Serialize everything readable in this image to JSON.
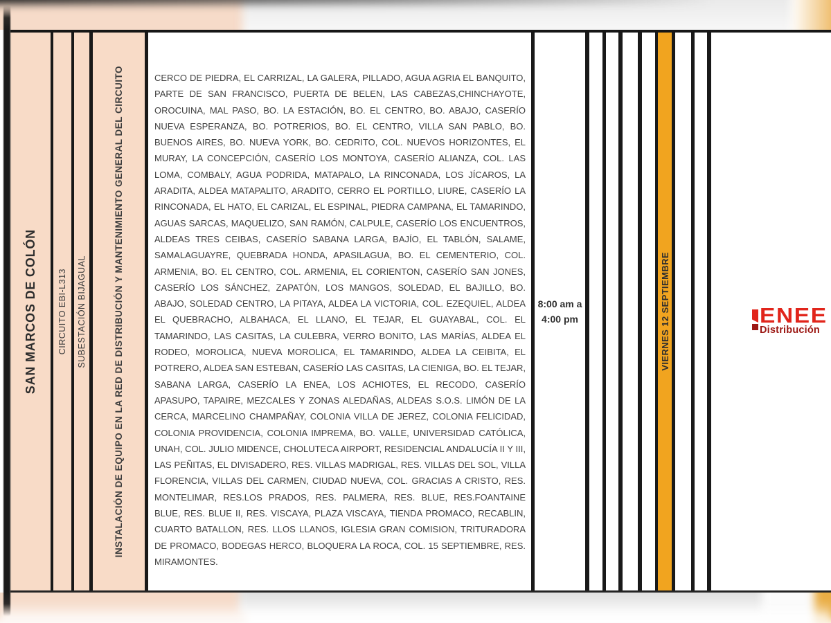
{
  "document": {
    "region": "SAN MARCOS DE COLÓN",
    "circuit": "CIRCUITO EBI-L313",
    "substation": "SUBESTACIÓN BIJAGUAL",
    "work_description": "INSTALACIÓN DE EQUIPO EN LA RED DE DISTRIBUCIÓN Y MANTENIMIENTO GENERAL DEL CIRCUITO",
    "affected_areas": "CERCO DE PIEDRA, EL CARRIZAL, LA GALERA, PILLADO, AGUA AGRIA EL BANQUITO, PARTE DE SAN FRANCISCO, PUERTA DE BELEN, LAS CABEZAS,CHINCHAYOTE, OROCUINA, MAL PASO, BO. LA ESTACIÓN, BO. EL CENTRO, BO. ABAJO, CASERÍO NUEVA ESPERANZA, BO. POTRERIOS, BO. EL CENTRO, VILLA SAN PABLO, BO. BUENOS AIRES, BO. NUEVA YORK, BO. CEDRITO, COL. NUEVOS HORIZONTES, EL MURAY, LA CONCEPCIÓN, CASERÍO LOS MONTOYA, CASERÍO ALIANZA, COL. LAS LOMA, COMBALY, AGUA PODRIDA, MATAPALO, LA RINCONADA, LOS JÍCAROS, LA ARADITA, ALDEA MATAPALITO, ARADITO, CERRO EL PORTILLO, LIURE, CASERÍO LA RINCONADA, EL HATO, EL CARIZAL, EL ESPINAL, PIEDRA CAMPANA, EL TAMARINDO, AGUAS SARCAS, MAQUELIZO, SAN RAMÓN, CALPULE, CASERÍO LOS ENCUENTROS, ALDEAS TRES CEIBAS, CASERÍO SABANA LARGA, BAJÍO, EL TABLÓN, SALAME, SAMALAGUAYRE, QUEBRADA HONDA, APASILAGUA, BO. EL CEMENTERIO, COL. ARMENIA, BO. EL CENTRO, COL. ARMENIA, EL CORIENTON, CASERÍO SAN JONES, CASERÍO LOS SÁNCHEZ, ZAPATÓN, LOS MANGOS, SOLEDAD, EL BAJILLO, BO. ABAJO, SOLEDAD CENTRO, LA PITAYA, ALDEA LA VICTORIA, COL. EZEQUIEL, ALDEA EL QUEBRACHO, ALBAHACA, EL LLANO, EL TEJAR, EL GUAYABAL, COL. EL TAMARINDO, LAS CASITAS, LA CULEBRA, VERRO BONITO, LAS MARÍAS, ALDEA EL RODEO, MOROLICA, NUEVA MOROLICA, EL TAMARINDO, ALDEA LA CEIBITA, EL POTRERO, ALDEA SAN ESTEBAN, CASERÍO LAS CASITAS, LA CIENIGA, BO. EL TEJAR, SABANA LARGA, CASERÍO LA ENEA, LOS ACHIOTES, EL RECODO, CASERÍO APASUPO, TAPAIRE, MEZCALES Y ZONAS ALEDAÑAS, ALDEAS S.O.S. LIMÓN DE LA CERCA, MARCELINO CHAMPAÑAY, COLONIA VILLA DE JEREZ, COLONIA FELICIDAD, COLONIA PROVIDENCIA, COLONIA IMPREMA, BO. VALLE, UNIVERSIDAD CATÓLICA, UNAH, COL. JULIO MIDENCE, CHOLUTECA AIRPORT, RESIDENCIAL ANDALUCÍA II Y III, LAS PEÑITAS, EL DIVISADERO, RES. VILLAS MADRIGAL, RES. VILLAS DEL SOL, VILLA FLORENCIA, VILLAS DEL CARMEN, CIUDAD NUEVA, COL. GRACIAS A CRISTO, RES. MONTELIMAR, RES.LOS PRADOS, RES. PALMERA, RES. BLUE, RES.FOANTAINE BLUE, RES. BLUE II, RES. VISCAYA, PLAZA VISCAYA, TIENDA PROMACO, RECABLIN, CUARTO BATALLON, RES. LLOS LLANOS, IGLESIA GRAN COMISION, TRITURADORA DE PROMACO, BODEGAS HERCO, BLOQUERA LA ROCA, COL. 15 SEPTIEMBRE, RES. MIRAMONTES.",
    "schedule": {
      "start_line": "8:00 am a",
      "end_line": "4:00 pm"
    },
    "date": "VIERNES 12 SEPTIEMBRE"
  },
  "logo": {
    "brand": "ENEE",
    "division": "Distribución"
  },
  "colors": {
    "table_pink": "#F8DBC7",
    "date_orange": "#F1A41F",
    "enee_red": "#E1251B",
    "enee_darkred": "#9C1713",
    "border_black": "#191919"
  }
}
